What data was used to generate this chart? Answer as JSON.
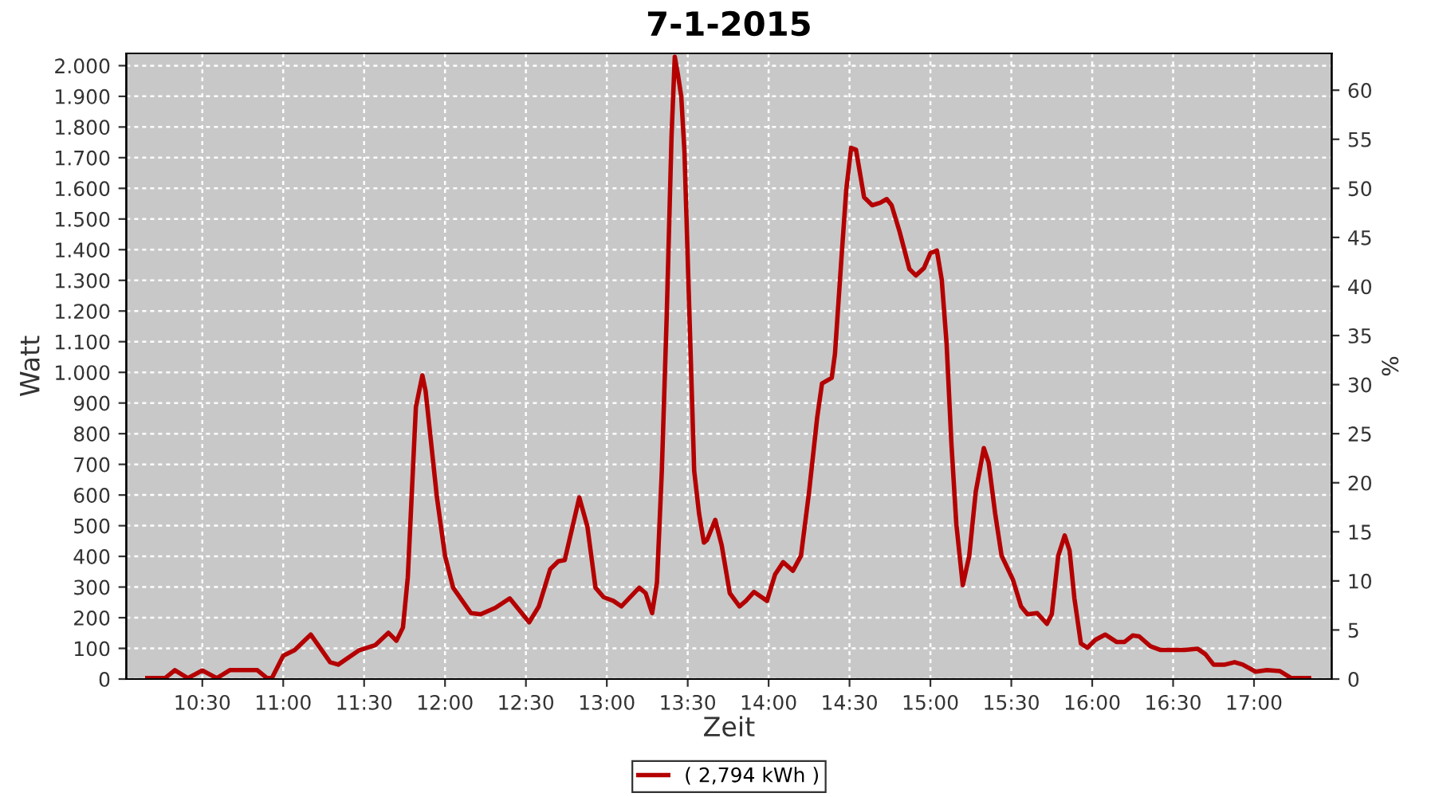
{
  "chart_data": {
    "type": "line",
    "title": "7-1-2015",
    "xlabel": "Zeit",
    "ylabel": "Watt",
    "y2label": "%",
    "xlim": [
      10.03,
      17.48
    ],
    "xticks": [
      {
        "value": 10.5,
        "label": "10:30"
      },
      {
        "value": 11,
        "label": "11:00"
      },
      {
        "value": 11.5,
        "label": "11:30"
      },
      {
        "value": 12,
        "label": "12:00"
      },
      {
        "value": 12.5,
        "label": "12:30"
      },
      {
        "value": 13,
        "label": "13:00"
      },
      {
        "value": 13.5,
        "label": "13:30"
      },
      {
        "value": 14,
        "label": "14:00"
      },
      {
        "value": 14.5,
        "label": "14:30"
      },
      {
        "value": 15,
        "label": "15:00"
      },
      {
        "value": 15.5,
        "label": "15:30"
      },
      {
        "value": 16,
        "label": "16:00"
      },
      {
        "value": 16.5,
        "label": "16:30"
      },
      {
        "value": 17,
        "label": "17:00"
      }
    ],
    "ylim": [
      0,
      2040
    ],
    "yticks": [
      0,
      100,
      200,
      300,
      400,
      500,
      600,
      700,
      800,
      900,
      {
        "value": 1000,
        "label": "1.000"
      },
      {
        "value": 1100,
        "label": "1.100"
      },
      {
        "value": 1200,
        "label": "1.200"
      },
      {
        "value": 1300,
        "label": "1.300"
      },
      {
        "value": 1400,
        "label": "1.400"
      },
      {
        "value": 1500,
        "label": "1.500"
      },
      {
        "value": 1600,
        "label": "1.600"
      },
      {
        "value": 1700,
        "label": "1.700"
      },
      {
        "value": 1800,
        "label": "1.800"
      },
      {
        "value": 1900,
        "label": "1.900"
      },
      {
        "value": 2000,
        "label": "2.000"
      }
    ],
    "y2lim": [
      0,
      63.75
    ],
    "y2ticks": [
      0,
      5,
      10,
      15,
      20,
      25,
      30,
      35,
      40,
      45,
      50,
      55,
      60
    ],
    "grid": true,
    "legend": "bottom",
    "marker": "none",
    "line_style": "solid",
    "series": [
      {
        "name": "( 2,794 kWh )",
        "color": "#b40000",
        "x": [
          10.16,
          10.27,
          10.33,
          10.41,
          10.5,
          10.59,
          10.67,
          10.84,
          10.9,
          10.93,
          11.0,
          11.07,
          11.17,
          11.29,
          11.34,
          11.47,
          11.57,
          11.65,
          11.7,
          11.74,
          11.77,
          11.82,
          11.86,
          11.88,
          11.95,
          12.0,
          12.05,
          12.16,
          12.22,
          12.31,
          12.4,
          12.52,
          12.58,
          12.65,
          12.7,
          12.74,
          12.83,
          12.88,
          12.93,
          12.98,
          13.04,
          13.09,
          13.2,
          13.24,
          13.28,
          13.31,
          13.34,
          13.37,
          13.4,
          13.42,
          13.44,
          13.46,
          13.48,
          13.51,
          13.54,
          13.57,
          13.6,
          13.62,
          13.67,
          13.71,
          13.76,
          13.82,
          13.86,
          13.91,
          13.99,
          14.04,
          14.09,
          14.15,
          14.2,
          14.25,
          14.3,
          14.33,
          14.39,
          14.41,
          14.45,
          14.48,
          14.51,
          14.54,
          14.59,
          14.64,
          14.69,
          14.73,
          14.76,
          14.81,
          14.87,
          14.91,
          14.96,
          15.0,
          15.04,
          15.07,
          15.1,
          15.13,
          15.16,
          15.2,
          15.24,
          15.28,
          15.33,
          15.36,
          15.4,
          15.44,
          15.51,
          15.56,
          15.6,
          15.66,
          15.72,
          15.75,
          15.79,
          15.83,
          15.86,
          15.89,
          15.93,
          15.97,
          16.02,
          16.08,
          16.15,
          16.2,
          16.25,
          16.29,
          16.36,
          16.42,
          16.57,
          16.65,
          16.7,
          16.75,
          16.82,
          16.88,
          16.93,
          17.01,
          17.08,
          17.16,
          17.23,
          17.34
        ],
        "values": [
          3,
          3,
          29,
          3,
          28,
          3,
          29,
          29,
          3,
          3,
          76,
          94,
          145,
          55,
          47,
          94,
          111,
          151,
          125,
          168,
          332,
          887,
          990,
          939,
          592,
          402,
          298,
          215,
          211,
          232,
          263,
          185,
          237,
          358,
          384,
          388,
          592,
          497,
          298,
          267,
          255,
          237,
          298,
          280,
          215,
          315,
          679,
          1181,
          1770,
          2029,
          1969,
          1900,
          1718,
          1198,
          679,
          540,
          445,
          454,
          519,
          436,
          280,
          237,
          255,
          284,
          255,
          341,
          381,
          353,
          402,
          610,
          852,
          964,
          982,
          1060,
          1371,
          1597,
          1732,
          1726,
          1571,
          1545,
          1553,
          1565,
          1545,
          1458,
          1337,
          1316,
          1340,
          1389,
          1397,
          1302,
          1094,
          765,
          506,
          306,
          402,
          610,
          753,
          705,
          540,
          402,
          324,
          237,
          211,
          215,
          180,
          211,
          402,
          468,
          419,
          263,
          116,
          102,
          128,
          145,
          121,
          121,
          142,
          139,
          107,
          95,
          95,
          99,
          81,
          47,
          47,
          55,
          47,
          24,
          29,
          26,
          3,
          3
        ]
      }
    ]
  }
}
